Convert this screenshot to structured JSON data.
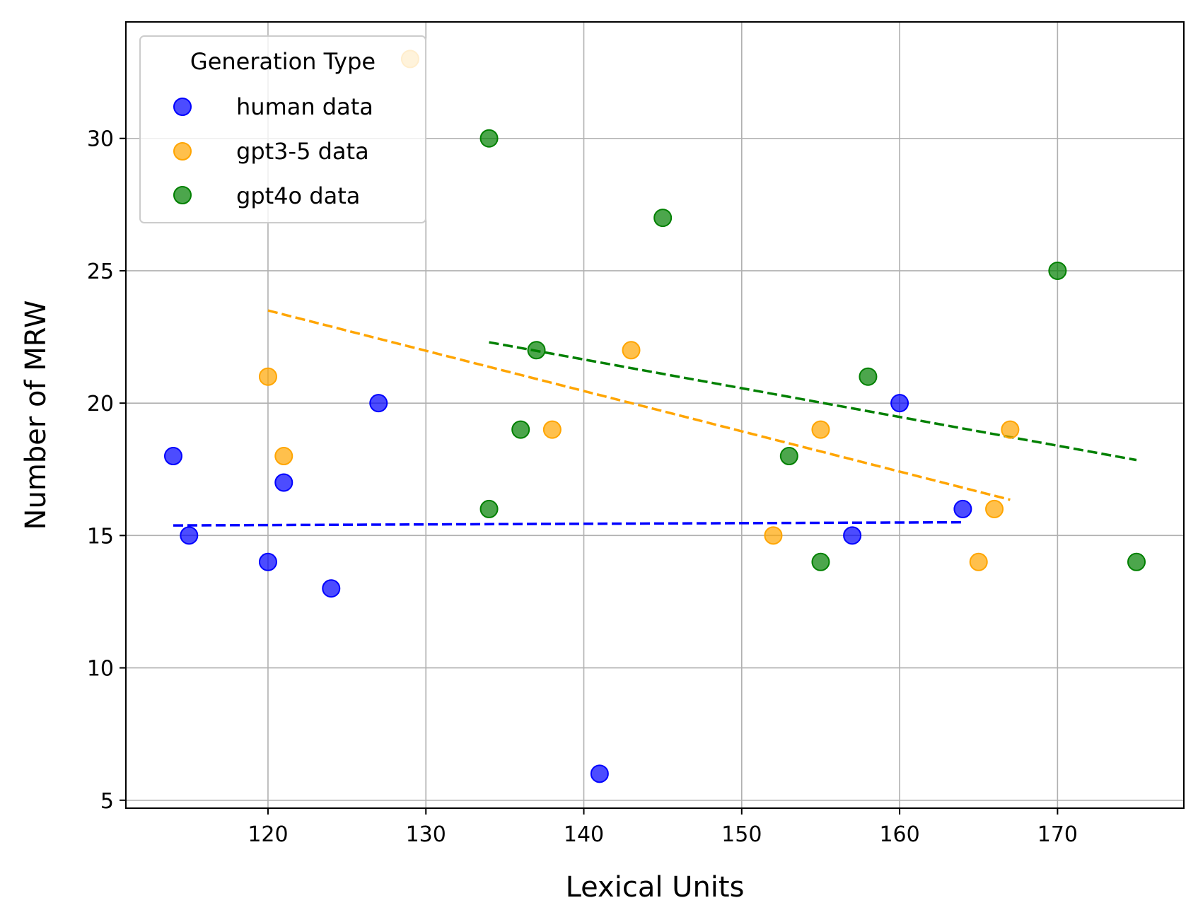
{
  "chart_data": {
    "type": "scatter",
    "title": "",
    "xlabel": "Lexical Units",
    "ylabel": "Number of MRW",
    "xlim": [
      111,
      178
    ],
    "ylim": [
      4.7,
      34.4
    ],
    "xticks": [
      120,
      130,
      140,
      150,
      160,
      170
    ],
    "yticks": [
      5,
      10,
      15,
      20,
      25,
      30
    ],
    "grid": true,
    "legend": {
      "title": "Generation Type",
      "location": "upper-left"
    },
    "series": [
      {
        "name": "human data",
        "color": "#0000ff",
        "points": [
          [
            114,
            18
          ],
          [
            115,
            15
          ],
          [
            120,
            14
          ],
          [
            121,
            17
          ],
          [
            124,
            13
          ],
          [
            127,
            20
          ],
          [
            141,
            6
          ],
          [
            157,
            15
          ],
          [
            160,
            20
          ],
          [
            164,
            16
          ]
        ],
        "trendline": [
          [
            114,
            15.38
          ],
          [
            164,
            15.5
          ]
        ]
      },
      {
        "name": "gpt3-5 data",
        "color": "#ffa500",
        "points": [
          [
            120,
            21
          ],
          [
            121,
            18
          ],
          [
            129,
            33
          ],
          [
            138,
            19
          ],
          [
            143,
            22
          ],
          [
            152,
            15
          ],
          [
            155,
            19
          ],
          [
            165,
            14
          ],
          [
            166,
            16
          ],
          [
            167,
            19
          ]
        ],
        "trendline": [
          [
            120,
            23.5
          ],
          [
            167,
            16.35
          ]
        ]
      },
      {
        "name": "gpt4o data",
        "color": "#008000",
        "points": [
          [
            134,
            30
          ],
          [
            134,
            16
          ],
          [
            136,
            19
          ],
          [
            137,
            22
          ],
          [
            145,
            27
          ],
          [
            153,
            18
          ],
          [
            155,
            14
          ],
          [
            158,
            21
          ],
          [
            170,
            25
          ],
          [
            175,
            14
          ]
        ],
        "trendline": [
          [
            134,
            22.3
          ],
          [
            175,
            17.85
          ]
        ]
      }
    ]
  }
}
